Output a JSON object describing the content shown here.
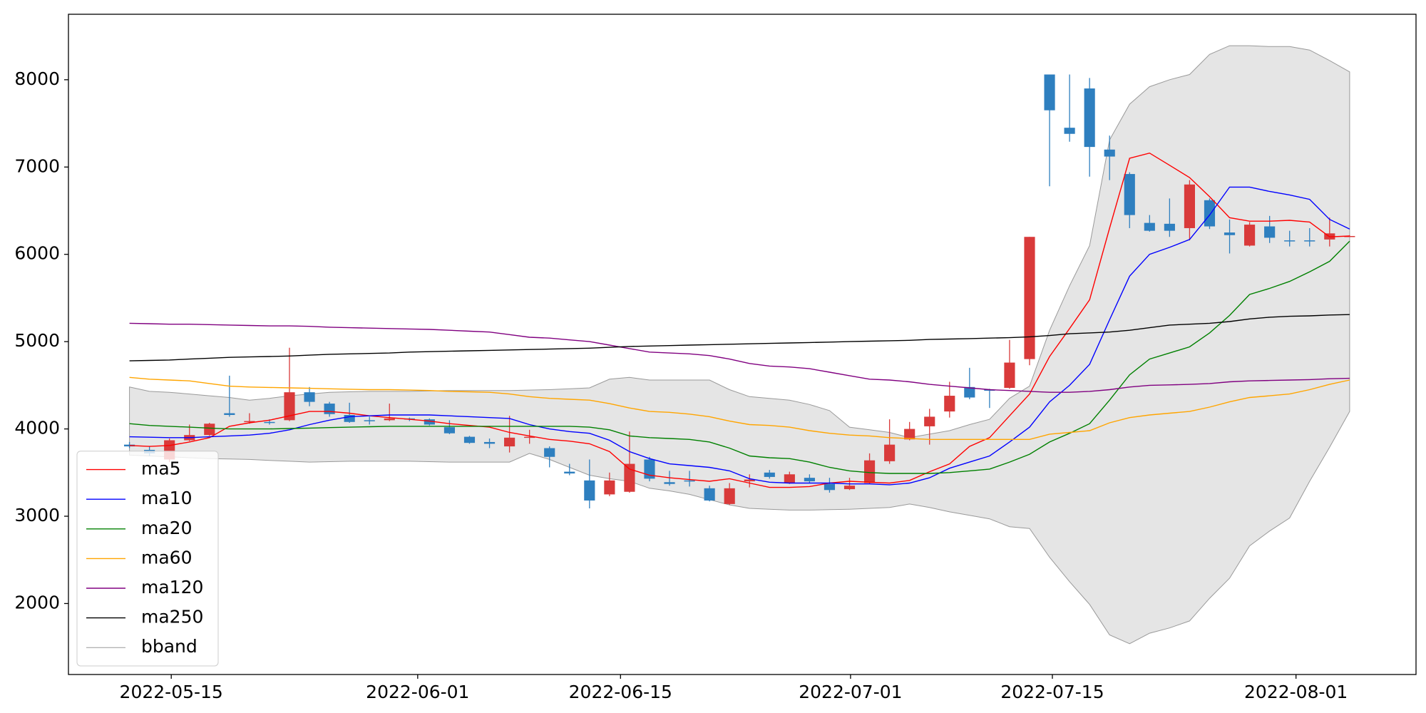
{
  "chart_data": {
    "type": "candlestick",
    "x": [
      0,
      1,
      2,
      3,
      4,
      5,
      6,
      7,
      8,
      9,
      10,
      11,
      12,
      13,
      14,
      15,
      16,
      17,
      18,
      19,
      20,
      21,
      22,
      23,
      24,
      25,
      26,
      27,
      28,
      29,
      30,
      31,
      32,
      33,
      34,
      35,
      36,
      37,
      38,
      39,
      40,
      41,
      42,
      43,
      44,
      45,
      46,
      47,
      48,
      49,
      50,
      51,
      52,
      53,
      54,
      55,
      56,
      57,
      58,
      59,
      60,
      61
    ],
    "xlim": [
      -3.05,
      64.32
    ],
    "xticks": [
      {
        "value": 2.09,
        "label": "2022-05-15"
      },
      {
        "value": 14.41,
        "label": "2022-06-01"
      },
      {
        "value": 24.55,
        "label": "2022-06-15"
      },
      {
        "value": 36.05,
        "label": "2022-07-01"
      },
      {
        "value": 46.14,
        "label": "2022-07-15"
      },
      {
        "value": 58.32,
        "label": "2022-08-01"
      }
    ],
    "ylim": [
      1187,
      8750
    ],
    "yticks": [
      2000,
      3000,
      4000,
      5000,
      6000,
      7000,
      8000
    ],
    "up_color": "#d93a3a",
    "down_color": "#2e7fbf",
    "ohlc": {
      "open": [
        3820,
        3760,
        3650,
        3870,
        3930,
        4180,
        4080,
        4080,
        4100,
        4420,
        4290,
        4160,
        4100,
        4100,
        4120,
        4110,
        4020,
        3910,
        3850,
        3800,
        3900,
        3780,
        3510,
        3410,
        3250,
        3280,
        3650,
        3390,
        3410,
        3320,
        3140,
        3400,
        3500,
        3380,
        3440,
        3370,
        3310,
        3380,
        3630,
        3880,
        4030,
        4200,
        4480,
        4450,
        4470,
        4800,
        8060,
        7450,
        7900,
        7200,
        6920,
        6360,
        6350,
        6300,
        6620,
        6250,
        6100,
        6320,
        6160,
        6160,
        6170,
        6210
      ],
      "high": [
        3850,
        3800,
        3890,
        4050,
        4070,
        4610,
        4180,
        4110,
        4930,
        4480,
        4310,
        4300,
        4140,
        4290,
        4130,
        4120,
        4100,
        3920,
        3890,
        4150,
        3990,
        3800,
        3600,
        3650,
        3500,
        3970,
        3680,
        3520,
        3520,
        3350,
        3380,
        3480,
        3530,
        3510,
        3480,
        3440,
        3440,
        3720,
        4110,
        4080,
        4230,
        4540,
        4700,
        4460,
        5020,
        6200,
        8060,
        8060,
        8020,
        7360,
        6940,
        6450,
        6640,
        6850,
        6640,
        6400,
        6370,
        6440,
        6270,
        6300,
        6420,
        6220
      ],
      "low": [
        3780,
        3690,
        3620,
        3860,
        3920,
        4140,
        4060,
        4050,
        4090,
        4260,
        4140,
        4070,
        4050,
        4090,
        4090,
        4040,
        3940,
        3830,
        3780,
        3730,
        3830,
        3560,
        3470,
        3090,
        3230,
        3270,
        3400,
        3350,
        3340,
        3170,
        3130,
        3330,
        3430,
        3370,
        3380,
        3270,
        3300,
        3370,
        3600,
        3870,
        3820,
        4130,
        4340,
        4240,
        4460,
        4730,
        6780,
        7290,
        6890,
        6850,
        6300,
        6260,
        6200,
        6160,
        6290,
        6010,
        6090,
        6130,
        6090,
        6090,
        6090,
        6200
      ],
      "close": [
        3800,
        3720,
        3870,
        3930,
        4060,
        4160,
        4090,
        4070,
        4420,
        4310,
        4170,
        4080,
        4090,
        4120,
        4110,
        4050,
        3950,
        3840,
        3830,
        3900,
        3910,
        3680,
        3490,
        3180,
        3410,
        3600,
        3430,
        3370,
        3400,
        3180,
        3320,
        3420,
        3450,
        3480,
        3400,
        3300,
        3350,
        3640,
        3820,
        4000,
        4140,
        4380,
        4360,
        4440,
        4760,
        6200,
        7650,
        7380,
        7230,
        7120,
        6450,
        6270,
        6270,
        6800,
        6320,
        6220,
        6340,
        6190,
        6150,
        6150,
        6240,
        6210
      ]
    },
    "lines": [
      {
        "name": "ma5",
        "color": "#ff0000",
        "values": [
          3810,
          3800,
          3810,
          3850,
          3900,
          4030,
          4070,
          4100,
          4150,
          4200,
          4200,
          4180,
          4150,
          4130,
          4110,
          4090,
          4060,
          4040,
          4020,
          3960,
          3920,
          3880,
          3860,
          3830,
          3740,
          3540,
          3470,
          3440,
          3420,
          3400,
          3430,
          3380,
          3330,
          3330,
          3340,
          3380,
          3400,
          3390,
          3380,
          3410,
          3510,
          3600,
          3800,
          3900,
          4150,
          4400,
          4830,
          5150,
          5480,
          6300,
          7100,
          7160,
          7020,
          6880,
          6660,
          6420,
          6380,
          6380,
          6390,
          6370,
          6200,
          6210
        ]
      },
      {
        "name": "ma10",
        "color": "#0000ff",
        "values": [
          3910,
          3905,
          3900,
          3900,
          3910,
          3920,
          3930,
          3950,
          3990,
          4050,
          4100,
          4140,
          4150,
          4160,
          4160,
          4160,
          4150,
          4140,
          4130,
          4120,
          4050,
          4000,
          3970,
          3950,
          3870,
          3740,
          3660,
          3600,
          3580,
          3560,
          3520,
          3430,
          3390,
          3380,
          3380,
          3380,
          3370,
          3370,
          3360,
          3380,
          3440,
          3550,
          3620,
          3690,
          3850,
          4020,
          4310,
          4500,
          4740,
          5250,
          5750,
          6000,
          6080,
          6170,
          6450,
          6770,
          6770,
          6720,
          6680,
          6630,
          6400,
          6290
        ]
      },
      {
        "name": "ma20",
        "color": "#008000",
        "values": [
          4060,
          4040,
          4030,
          4020,
          4010,
          4000,
          4000,
          4000,
          4005,
          4010,
          4015,
          4020,
          4025,
          4030,
          4030,
          4030,
          4030,
          4030,
          4030,
          4030,
          4030,
          4030,
          4030,
          4020,
          3990,
          3920,
          3900,
          3890,
          3880,
          3850,
          3780,
          3690,
          3670,
          3660,
          3620,
          3560,
          3520,
          3500,
          3490,
          3490,
          3490,
          3500,
          3520,
          3540,
          3620,
          3710,
          3850,
          3950,
          4060,
          4330,
          4620,
          4800,
          4870,
          4940,
          5100,
          5300,
          5540,
          5610,
          5690,
          5800,
          5920,
          6150
        ]
      },
      {
        "name": "ma60",
        "color": "#ffa500",
        "values": [
          4590,
          4570,
          4560,
          4550,
          4520,
          4490,
          4480,
          4475,
          4470,
          4465,
          4460,
          4455,
          4450,
          4450,
          4445,
          4440,
          4430,
          4425,
          4420,
          4400,
          4370,
          4350,
          4340,
          4330,
          4290,
          4240,
          4200,
          4190,
          4170,
          4140,
          4090,
          4050,
          4040,
          4020,
          3980,
          3950,
          3930,
          3920,
          3900,
          3890,
          3880,
          3880,
          3880,
          3880,
          3880,
          3880,
          3940,
          3960,
          3980,
          4070,
          4130,
          4160,
          4180,
          4200,
          4250,
          4310,
          4360,
          4380,
          4400,
          4450,
          4510,
          4560
        ]
      },
      {
        "name": "ma120",
        "color": "#800080",
        "values": [
          5210,
          5205,
          5200,
          5200,
          5195,
          5190,
          5185,
          5180,
          5180,
          5175,
          5165,
          5160,
          5155,
          5150,
          5145,
          5140,
          5130,
          5120,
          5110,
          5080,
          5050,
          5040,
          5020,
          5000,
          4960,
          4920,
          4880,
          4870,
          4860,
          4840,
          4800,
          4750,
          4720,
          4710,
          4690,
          4650,
          4610,
          4570,
          4560,
          4540,
          4510,
          4490,
          4470,
          4450,
          4440,
          4430,
          4420,
          4420,
          4430,
          4450,
          4480,
          4500,
          4505,
          4510,
          4520,
          4540,
          4550,
          4555,
          4560,
          4565,
          4575,
          4580
        ]
      },
      {
        "name": "ma250",
        "color": "#000000",
        "values": [
          4780,
          4785,
          4790,
          4800,
          4810,
          4820,
          4825,
          4830,
          4835,
          4845,
          4855,
          4860,
          4865,
          4870,
          4880,
          4885,
          4890,
          4895,
          4900,
          4905,
          4910,
          4915,
          4920,
          4925,
          4935,
          4945,
          4950,
          4955,
          4960,
          4965,
          4970,
          4975,
          4980,
          4985,
          4990,
          4995,
          5000,
          5005,
          5010,
          5015,
          5025,
          5030,
          5035,
          5040,
          5045,
          5055,
          5070,
          5090,
          5100,
          5110,
          5130,
          5160,
          5190,
          5200,
          5210,
          5230,
          5260,
          5280,
          5290,
          5295,
          5305,
          5310
        ]
      }
    ],
    "band": {
      "name": "bband",
      "color": "#999999",
      "fill": "#e5e5e5",
      "upper": [
        4480,
        4430,
        4420,
        4400,
        4380,
        4360,
        4330,
        4350,
        4380,
        4400,
        4420,
        4425,
        4430,
        4430,
        4430,
        4435,
        4440,
        4440,
        4440,
        4440,
        4445,
        4450,
        4460,
        4470,
        4570,
        4590,
        4560,
        4560,
        4560,
        4560,
        4450,
        4370,
        4350,
        4330,
        4280,
        4210,
        4020,
        3990,
        3960,
        3900,
        3940,
        3980,
        4050,
        4110,
        4350,
        4490,
        5130,
        5640,
        6100,
        7310,
        7720,
        7920,
        8000,
        8060,
        8290,
        8390,
        8390,
        8380,
        8380,
        8340,
        8220,
        8090
      ],
      "lower": [
        3700,
        3690,
        3680,
        3670,
        3660,
        3655,
        3650,
        3640,
        3630,
        3620,
        3625,
        3630,
        3630,
        3630,
        3630,
        3625,
        3620,
        3620,
        3620,
        3620,
        3720,
        3650,
        3560,
        3470,
        3430,
        3400,
        3320,
        3290,
        3250,
        3190,
        3130,
        3090,
        3080,
        3070,
        3070,
        3075,
        3080,
        3090,
        3100,
        3140,
        3100,
        3050,
        3010,
        2970,
        2880,
        2860,
        2530,
        2250,
        1990,
        1640,
        1540,
        1660,
        1720,
        1800,
        2060,
        2290,
        2660,
        2830,
        2980,
        3400,
        3790,
        4200
      ]
    },
    "legend": "lower left"
  }
}
